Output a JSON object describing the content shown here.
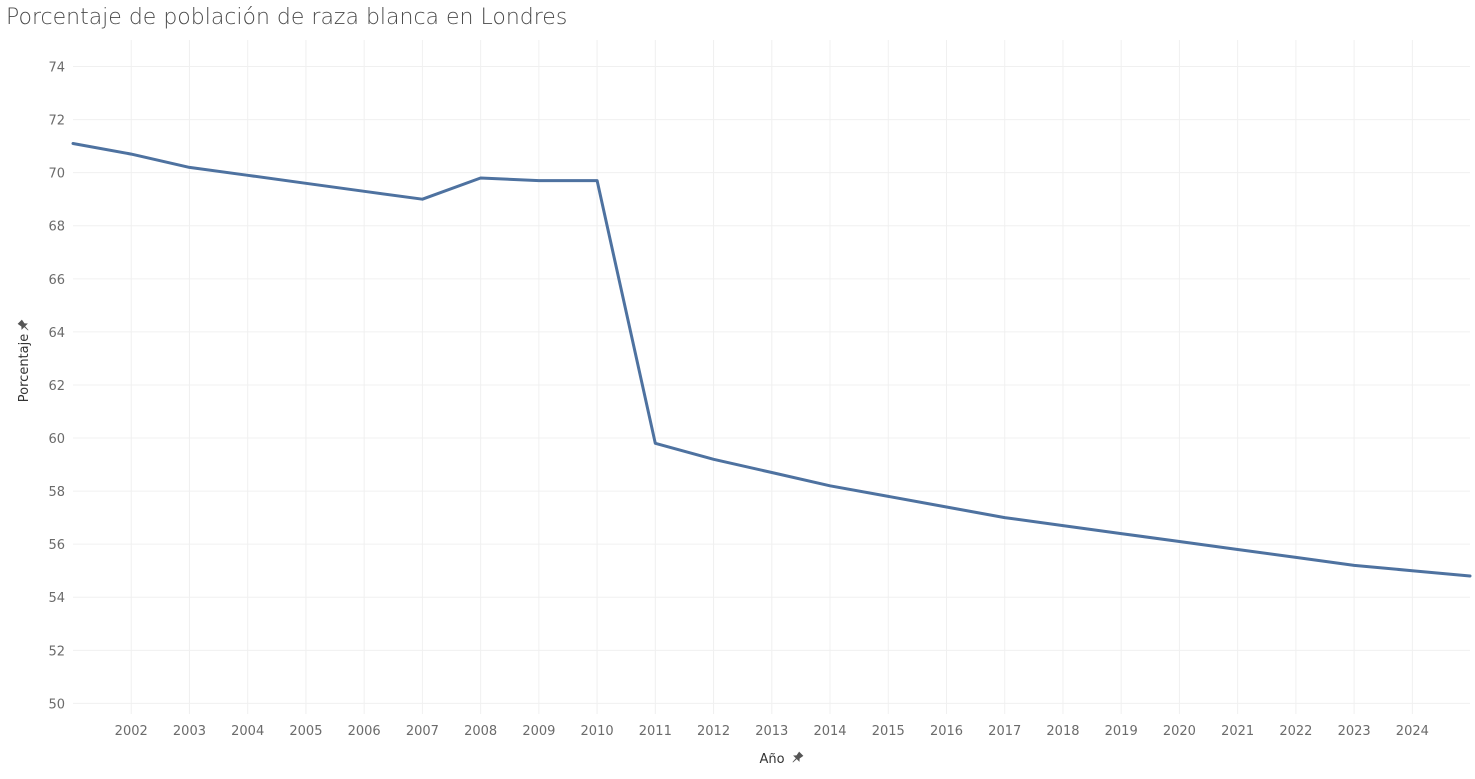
{
  "chart_data": {
    "type": "line",
    "title": "Porcentaje de población de raza blanca en Londres",
    "xlabel": "Año",
    "ylabel": "Porcentaje",
    "axis_label_icon": "pin-icon",
    "grid": true,
    "xlim": [
      2001,
      2024.99
    ],
    "ylim": [
      49.6,
      75
    ],
    "x_ticks": [
      2002,
      2003,
      2004,
      2005,
      2006,
      2007,
      2008,
      2009,
      2010,
      2011,
      2012,
      2013,
      2014,
      2015,
      2016,
      2017,
      2018,
      2019,
      2020,
      2021,
      2022,
      2023,
      2024
    ],
    "y_ticks": [
      50,
      52,
      54,
      56,
      58,
      60,
      62,
      64,
      66,
      68,
      70,
      72,
      74
    ],
    "series": [
      {
        "color": "#4e72a0",
        "x": [
          2001,
          2002,
          2003,
          2004,
          2005,
          2006,
          2007,
          2008,
          2009,
          2010,
          2011,
          2012,
          2013,
          2014,
          2015,
          2016,
          2017,
          2018,
          2019,
          2020,
          2021,
          2022,
          2023,
          2024,
          2024.99
        ],
        "y": [
          71.1,
          70.7,
          70.2,
          69.9,
          69.6,
          69.3,
          69.0,
          69.8,
          69.7,
          69.7,
          59.8,
          59.2,
          58.7,
          58.2,
          57.8,
          57.4,
          57.0,
          56.7,
          56.4,
          56.1,
          55.8,
          55.5,
          55.2,
          55.0,
          54.8
        ]
      }
    ]
  }
}
